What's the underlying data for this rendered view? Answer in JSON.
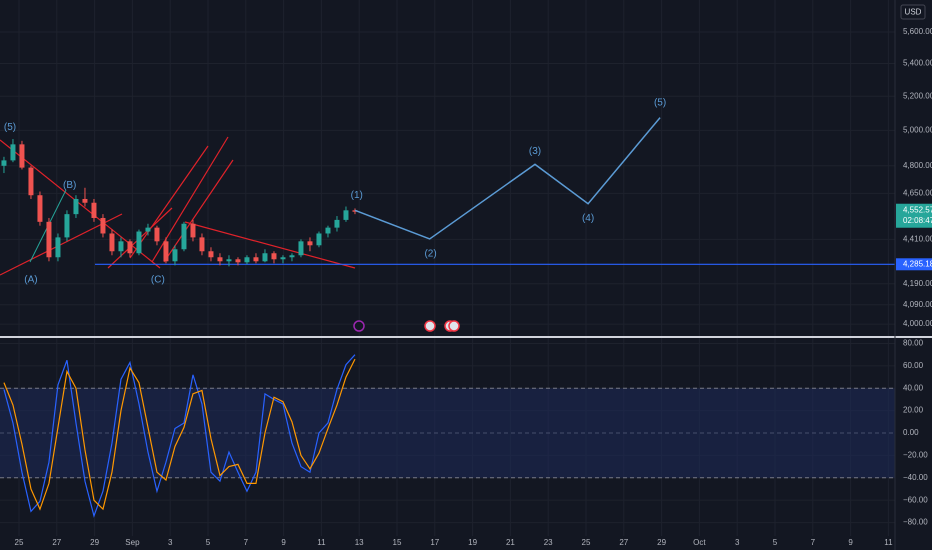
{
  "chart_data": [
    {
      "type": "candlestick",
      "currency": "USD",
      "x_labels": [
        "25",
        "27",
        "29",
        "Sep",
        "3",
        "5",
        "7",
        "9",
        "11",
        "13",
        "15",
        "17",
        "19",
        "21",
        "23",
        "25",
        "27",
        "29",
        "Oct",
        "3",
        "5",
        "7",
        "9",
        "11"
      ],
      "candles": {
        "open": [
          4800,
          4830,
          4920,
          4790,
          4640,
          4500,
          4320,
          4420,
          4540,
          4620,
          4600,
          4520,
          4440,
          4350,
          4400,
          4340,
          4450,
          4470,
          4400,
          4300,
          4360,
          4490,
          4420,
          4350,
          4320,
          4300,
          4310,
          4295,
          4320,
          4300,
          4340,
          4310,
          4320,
          4330,
          4400,
          4380,
          4440,
          4470,
          4510,
          4560
        ],
        "high": [
          4850,
          4950,
          4940,
          4800,
          4660,
          4520,
          4440,
          4560,
          4640,
          4680,
          4620,
          4540,
          4460,
          4420,
          4410,
          4460,
          4490,
          4480,
          4420,
          4380,
          4500,
          4510,
          4440,
          4370,
          4340,
          4330,
          4320,
          4330,
          4340,
          4360,
          4350,
          4330,
          4340,
          4410,
          4420,
          4450,
          4480,
          4530,
          4580,
          4570
        ],
        "low": [
          4760,
          4820,
          4780,
          4620,
          4480,
          4300,
          4300,
          4400,
          4520,
          4580,
          4500,
          4420,
          4330,
          4320,
          4320,
          4330,
          4430,
          4380,
          4290,
          4280,
          4350,
          4400,
          4330,
          4300,
          4280,
          4275,
          4280,
          4285,
          4290,
          4295,
          4290,
          4290,
          4300,
          4320,
          4350,
          4370,
          4420,
          4450,
          4500,
          4540
        ],
        "close": [
          4830,
          4920,
          4790,
          4640,
          4500,
          4320,
          4420,
          4540,
          4620,
          4600,
          4520,
          4440,
          4350,
          4400,
          4340,
          4450,
          4470,
          4400,
          4300,
          4360,
          4490,
          4420,
          4350,
          4320,
          4300,
          4310,
          4295,
          4320,
          4300,
          4340,
          4310,
          4320,
          4330,
          4400,
          4380,
          4440,
          4470,
          4510,
          4560,
          4552.57
        ]
      },
      "up_color": "#26a69a",
      "down_color": "#ef5350",
      "xlim": [
        -0.44,
        99
      ],
      "ylim": [
        3950,
        5810
      ],
      "log_scale": true,
      "grid": true,
      "yticks": [
        {
          "value": 5600,
          "label": "5,600.00"
        },
        {
          "value": 5400,
          "label": "5,400.00"
        },
        {
          "value": 5200,
          "label": "5,200.00"
        },
        {
          "value": 5000,
          "label": "5,000.00"
        },
        {
          "value": 4800,
          "label": "4,800.00"
        },
        {
          "value": 4650,
          "label": "4,650.00"
        },
        {
          "value": 4410,
          "label": "4,410.00"
        },
        {
          "value": 4190,
          "label": "4,190.00"
        },
        {
          "value": 4090,
          "label": "4,090.00"
        },
        {
          "value": 4000,
          "label": "4,000.00"
        }
      ],
      "last_price": {
        "value": 4552.57,
        "label": "4,552.57",
        "color": "#26a69a"
      },
      "countdown": "02:08:47",
      "hline": {
        "value": 4285.18,
        "label": "4,285.18",
        "color": "#2962ff"
      },
      "projection": {
        "color": "#5b9bd5",
        "x": [
          39,
          47.3,
          59,
          64.9,
          72.9
        ],
        "y": [
          4560,
          4412,
          4808,
          4595,
          5074
        ]
      },
      "wave_labels": [
        {
          "text": "(5)",
          "x": 0.67,
          "y": 5016
        },
        {
          "text": "(A)",
          "x": 3,
          "y": 4209
        },
        {
          "text": "(B)",
          "x": 7.3,
          "y": 4693
        },
        {
          "text": "(C)",
          "x": 17.1,
          "y": 4209
        },
        {
          "text": "(1)",
          "x": 39.2,
          "y": 4640
        },
        {
          "text": "(2)",
          "x": 47.4,
          "y": 4336
        },
        {
          "text": "(3)",
          "x": 59,
          "y": 4880
        },
        {
          "text": "(4)",
          "x": 64.9,
          "y": 4519
        },
        {
          "text": "(5)",
          "x": 72.9,
          "y": 5162
        }
      ]
    },
    {
      "type": "oscillator",
      "xlim": [
        -0.44,
        99
      ],
      "ylim": [
        -92,
        84
      ],
      "grid": true,
      "band": [
        40,
        -40
      ],
      "band_color": "#1e2a5a",
      "yticks": [
        {
          "value": 80,
          "label": "80.00"
        },
        {
          "value": 60,
          "label": "60.00"
        },
        {
          "value": 40,
          "label": "40.00"
        },
        {
          "value": 20,
          "label": "20.00"
        },
        {
          "value": 0,
          "label": "0.00"
        },
        {
          "value": -20,
          "label": "−20.00"
        },
        {
          "value": -40,
          "label": "−40.00"
        },
        {
          "value": -60,
          "label": "−60.00"
        },
        {
          "value": -80,
          "label": "−80.00"
        }
      ],
      "series": [
        {
          "color": "#2962ff",
          "values": [
            39,
            9,
            -35,
            -70,
            -61,
            -26,
            43,
            65,
            9,
            -43,
            -74,
            -52,
            -9,
            48,
            63,
            26,
            -17,
            -52,
            -26,
            4,
            9,
            52,
            26,
            -35,
            -43,
            -17,
            -35,
            -52,
            -35,
            35,
            30,
            26,
            -9,
            -30,
            -35,
            0,
            9,
            39,
            61,
            70
          ]
        },
        {
          "color": "#ff9800",
          "values": [
            45,
            25,
            -10,
            -50,
            -68,
            -45,
            5,
            55,
            40,
            -15,
            -60,
            -68,
            -35,
            20,
            58,
            45,
            5,
            -35,
            -42,
            -12,
            5,
            35,
            38,
            -5,
            -38,
            -30,
            -28,
            -45,
            -45,
            0,
            32,
            28,
            10,
            -20,
            -32,
            -18,
            4,
            25,
            50,
            66
          ]
        }
      ]
    }
  ]
}
